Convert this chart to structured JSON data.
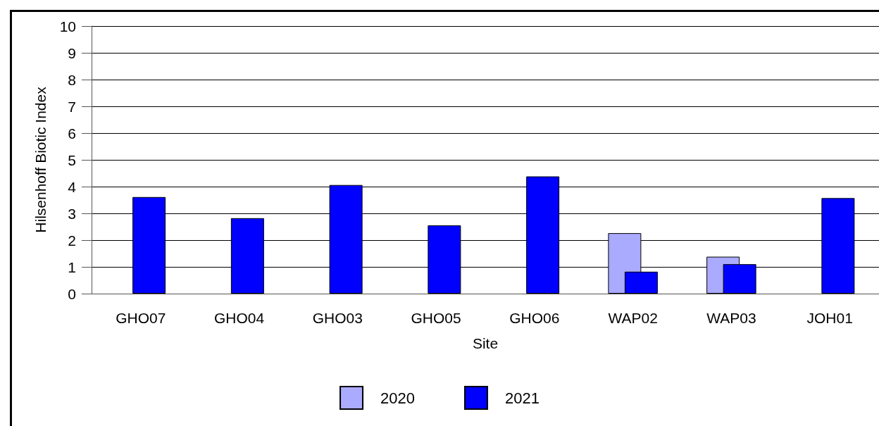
{
  "chart_data": {
    "type": "bar",
    "xlabel": "Site",
    "ylabel": "Hilsenhoff Biotic Index",
    "categories": [
      "GHO07",
      "GHO04",
      "GHO03",
      "GHO05",
      "GHO06",
      "WAP02",
      "WAP03",
      "JOH01"
    ],
    "series": [
      {
        "name": "2020",
        "color": "#aaaaff",
        "values": [
          null,
          null,
          null,
          null,
          null,
          2.26,
          1.38,
          null
        ]
      },
      {
        "name": "2021",
        "color": "#0000ff",
        "values": [
          3.61,
          2.82,
          4.06,
          2.55,
          4.38,
          0.82,
          1.1,
          3.57
        ]
      }
    ],
    "ylim": [
      0,
      10
    ],
    "yticks": [
      0,
      1,
      2,
      3,
      4,
      5,
      6,
      7,
      8,
      9,
      10
    ],
    "grid": "y",
    "legend": "bottom"
  }
}
